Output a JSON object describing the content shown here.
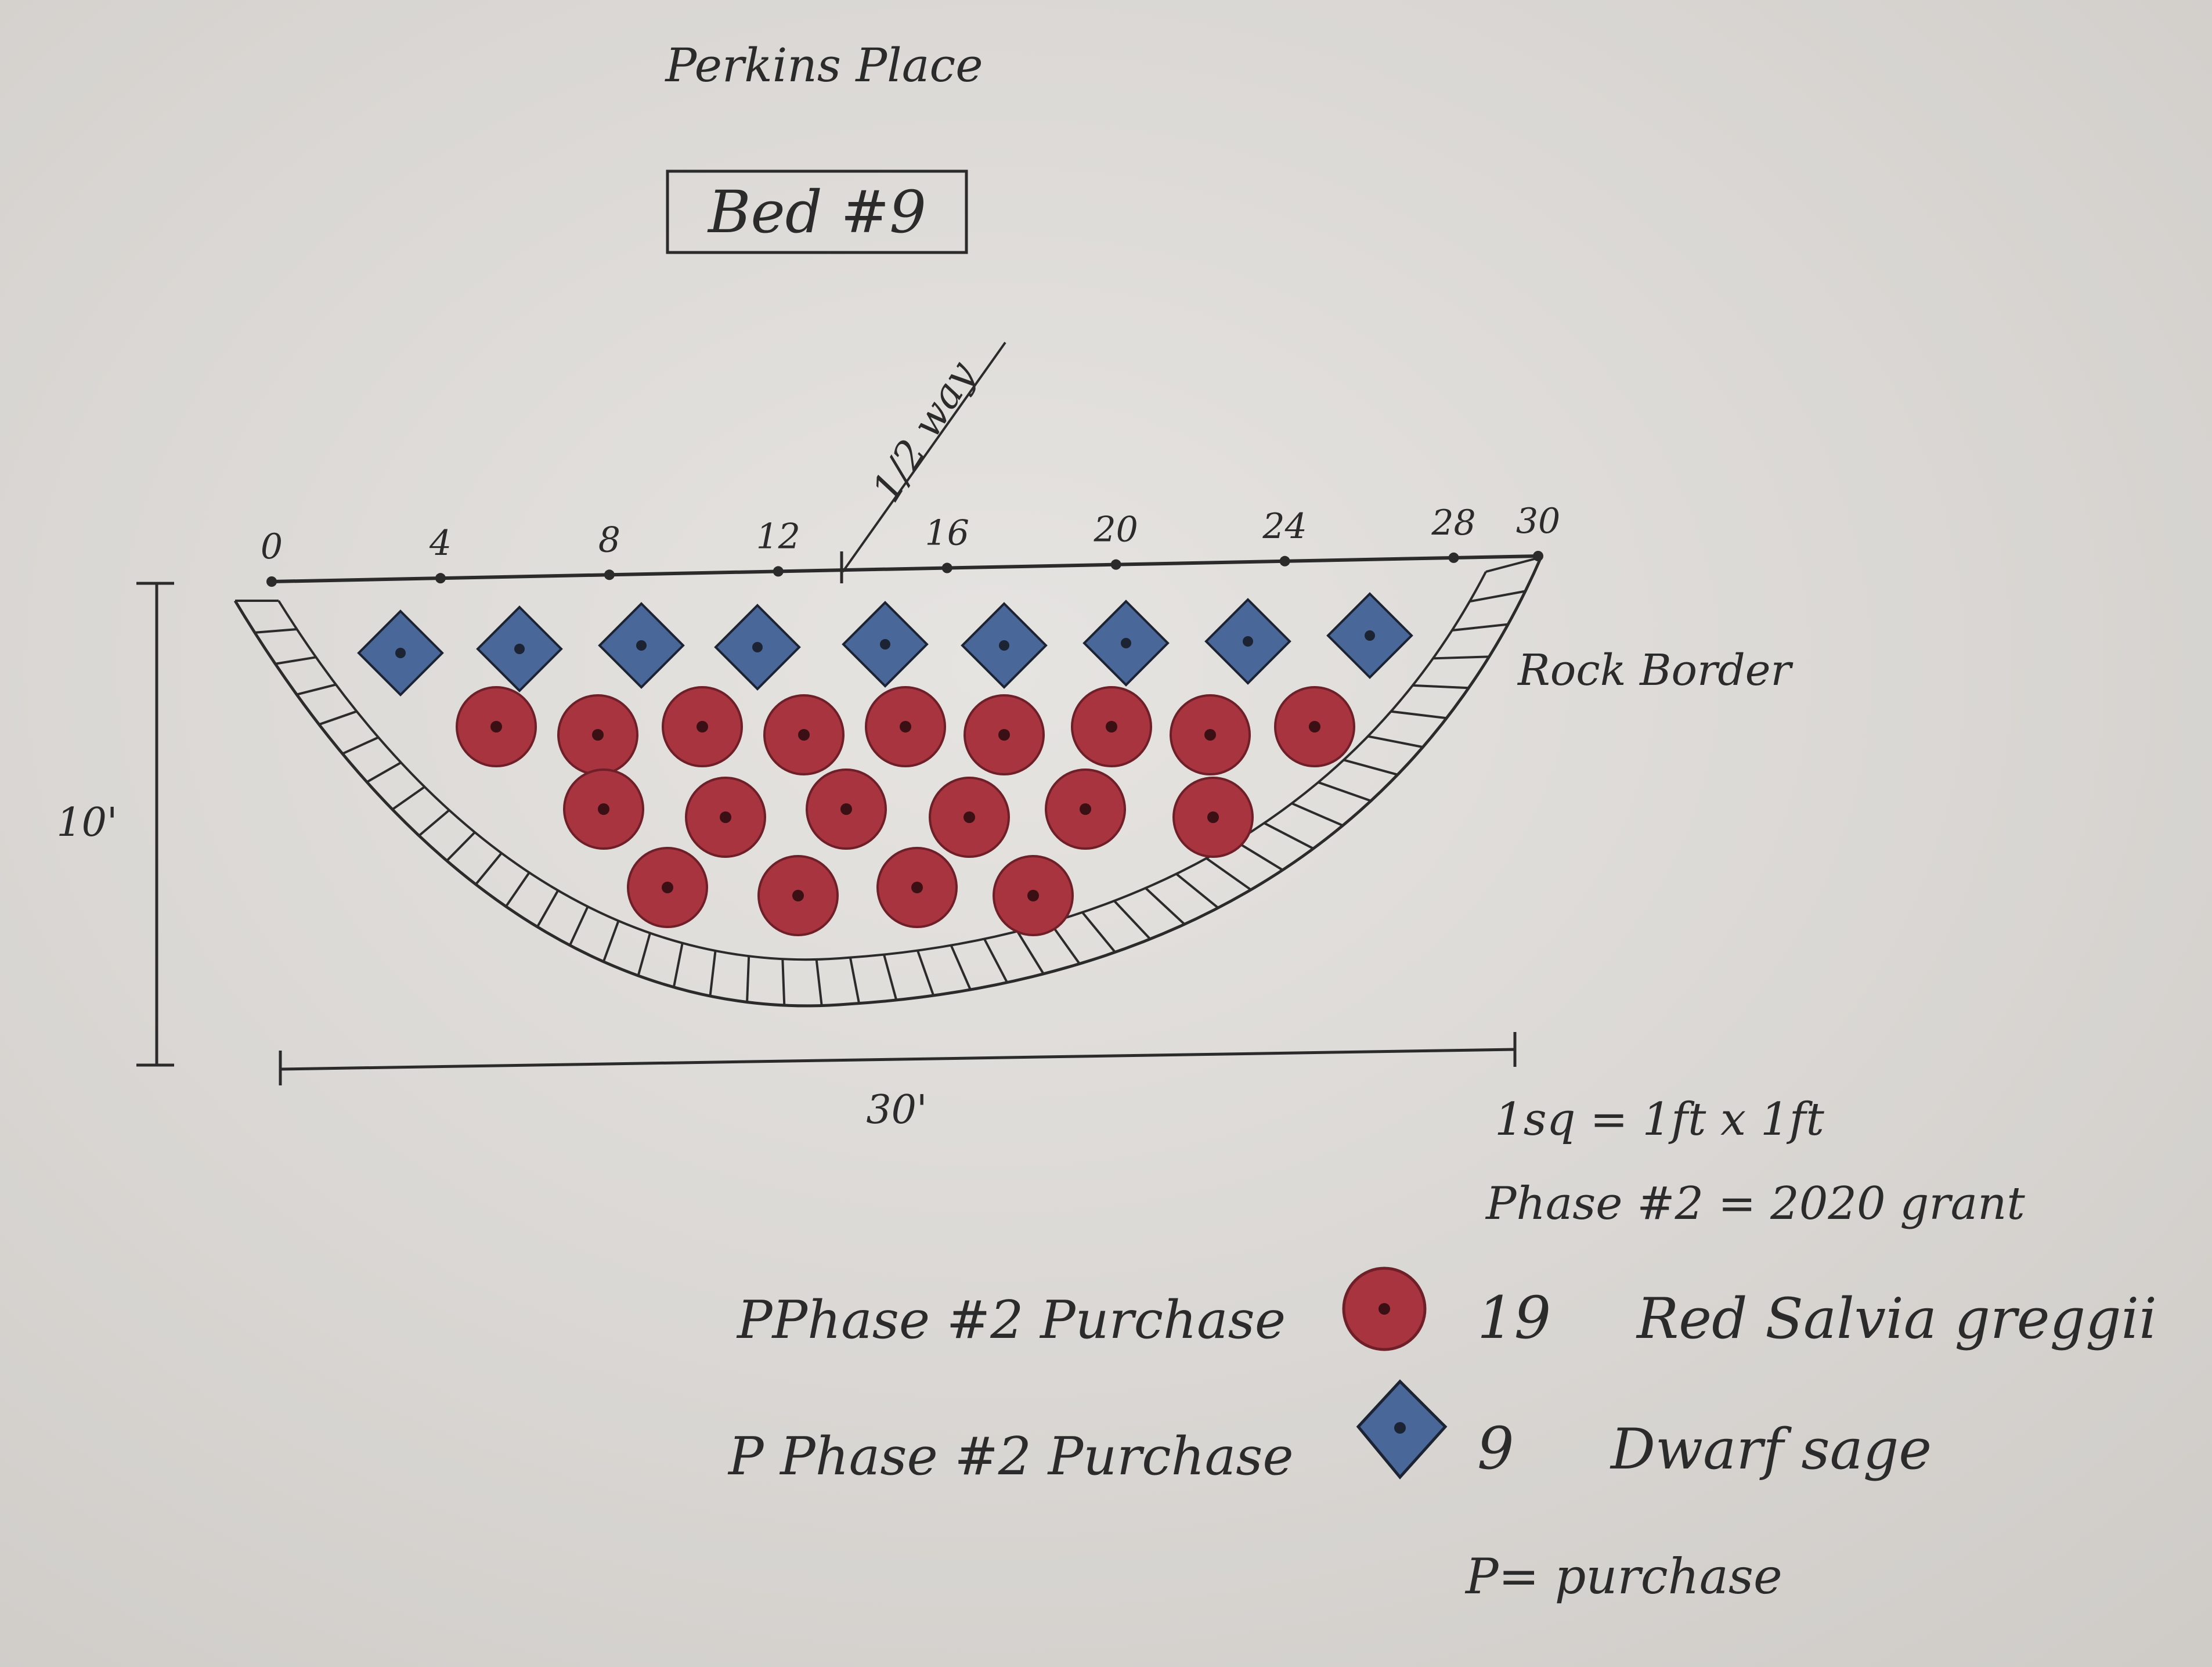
{
  "colors": {
    "paper": "#e4e2df",
    "ink": "#2b2b2b",
    "red_plant": "#a7343f",
    "red_center": "#3a1014",
    "blue_plant": "#4a6799",
    "blue_center": "#1c2333"
  },
  "header": {
    "title": "Perkins Place",
    "bed_label": "Bed #9"
  },
  "bed": {
    "ruler_ticks": [
      "0",
      "4",
      "8",
      "12",
      "16",
      "20",
      "24",
      "28",
      "30"
    ],
    "halfway_note": "1/2 way",
    "border_label": "Rock Border",
    "width_label": "30'",
    "height_label": "10'",
    "plants": {
      "dwarf_sage_count": 9,
      "red_salvia_rows": [
        9,
        6,
        4
      ]
    }
  },
  "notes": {
    "scale": "1sq = 1ft x 1ft",
    "phase": "Phase #2 = 2020 grant"
  },
  "legend": [
    {
      "source": "PPhase #2 Purchase",
      "symbol": "red-circle",
      "count": "19",
      "name": "Red Salvia greggii"
    },
    {
      "source": "P Phase #2 Purchase",
      "symbol": "blue-diamond",
      "count": "9",
      "name": "Dwarf sage"
    }
  ],
  "footnote": "P= purchase"
}
